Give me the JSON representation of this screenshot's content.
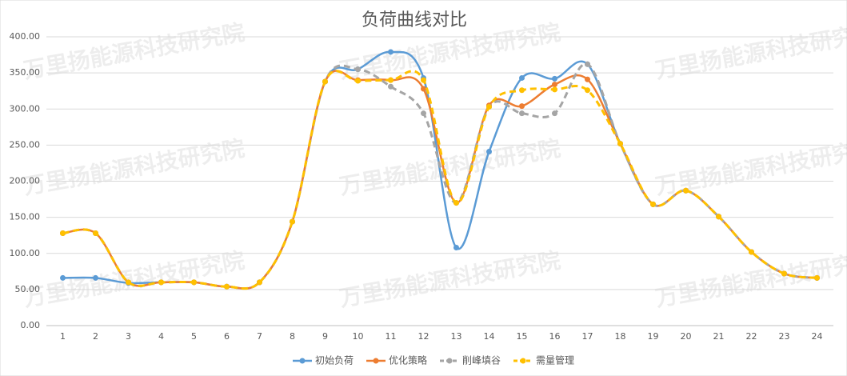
{
  "chart_data": {
    "type": "line",
    "title": "负荷曲线对比",
    "watermark": "万里扬能源科技研究院",
    "categories": [
      "1",
      "2",
      "3",
      "4",
      "5",
      "6",
      "7",
      "8",
      "9",
      "10",
      "11",
      "12",
      "13",
      "14",
      "15",
      "16",
      "17",
      "18",
      "19",
      "20",
      "21",
      "22",
      "23",
      "24"
    ],
    "ylim": [
      0,
      400
    ],
    "yticks": [
      {
        "value": 0,
        "label": "0.00"
      },
      {
        "value": 50,
        "label": "50.00"
      },
      {
        "value": 100,
        "label": "100.00"
      },
      {
        "value": 150,
        "label": "150.00"
      },
      {
        "value": 200,
        "label": "200.00"
      },
      {
        "value": 250,
        "label": "250.00"
      },
      {
        "value": 300,
        "label": "300.00"
      },
      {
        "value": 350,
        "label": "350.00"
      },
      {
        "value": 400,
        "label": "400.00"
      }
    ],
    "grid": true,
    "smooth": true,
    "legend": "bottom",
    "series": [
      {
        "name": "初始负荷",
        "color": "#5b9bd5",
        "dashed": false,
        "values": [
          66,
          66,
          59,
          60,
          60,
          54,
          60,
          144,
          338,
          355,
          379,
          343,
          108,
          241,
          343,
          342,
          362,
          252,
          168,
          187,
          151,
          102,
          72,
          66
        ]
      },
      {
        "name": "优化策略",
        "color": "#ed7d31",
        "dashed": false,
        "values": [
          128,
          128,
          60,
          60,
          60,
          54,
          60,
          144,
          338,
          340,
          340,
          328,
          170,
          305,
          304,
          334,
          341,
          252,
          168,
          187,
          151,
          102,
          72,
          66
        ]
      },
      {
        "name": "削峰填谷",
        "color": "#a5a5a5",
        "dashed": true,
        "values": [
          128,
          128,
          60,
          60,
          60,
          54,
          60,
          144,
          338,
          355,
          331,
          294,
          170,
          303,
          294,
          294,
          362,
          252,
          168,
          187,
          151,
          102,
          72,
          66
        ]
      },
      {
        "name": "需量管理",
        "color": "#ffc000",
        "dashed": true,
        "values": [
          128,
          128,
          60,
          60,
          60,
          54,
          60,
          144,
          338,
          339,
          340,
          340,
          170,
          303,
          326,
          327,
          326,
          252,
          168,
          187,
          151,
          102,
          72,
          66
        ]
      }
    ]
  }
}
